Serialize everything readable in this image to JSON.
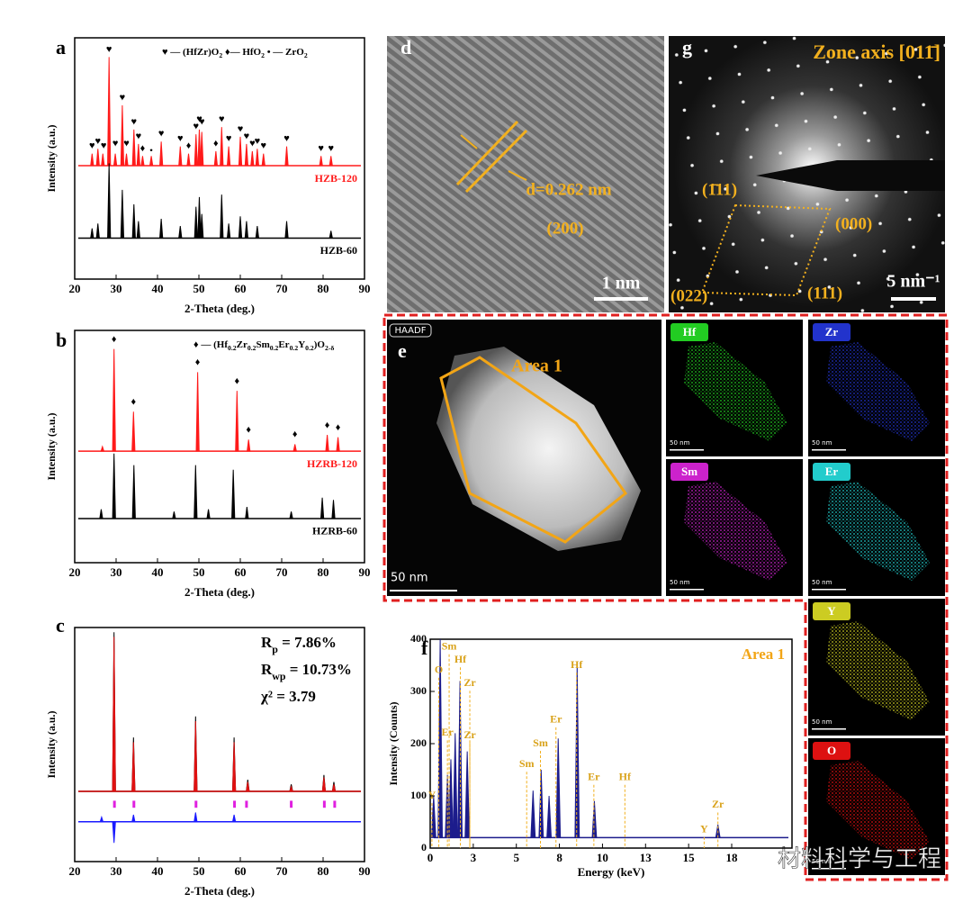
{
  "chart_data": [
    {
      "type": "peaks",
      "title": "a",
      "xlabel": "2-Theta (deg.)",
      "ylabel": "Intensity (a.u.)",
      "xlim": [
        20,
        90
      ],
      "xticks": [
        20,
        30,
        40,
        50,
        60,
        70,
        80,
        90
      ],
      "ylim": [
        0,
        100
      ],
      "legend": [
        {
          "text": "♥ — (HfZr)O"
        },
        {
          "text": "2",
          "sub": true
        },
        {
          "text": " ♦— HfO"
        },
        {
          "text": "2",
          "sub": true
        },
        {
          "text": " • — ZrO"
        },
        {
          "text": "2",
          "sub": true
        }
      ],
      "series": [
        {
          "name": "HZB-120",
          "color": "#ff1a1a",
          "baseline": 47,
          "x": [
            24.2,
            25.6,
            26.8,
            28.3,
            29.8,
            31.5,
            32.5,
            34.3,
            35.4,
            36.4,
            38.5,
            40.9,
            45.5,
            47.5,
            49.3,
            50.1,
            50.7,
            54.1,
            55.5,
            57.2,
            60.0,
            61.5,
            62.9,
            64.1,
            65.6,
            71.2,
            79.5,
            81.9
          ],
          "values": [
            52,
            54,
            52,
            92,
            52,
            72,
            52,
            62,
            56,
            51,
            51,
            57,
            55,
            52,
            60,
            62,
            61,
            53,
            63,
            55,
            59,
            56,
            53,
            54,
            52,
            55,
            51,
            51
          ]
        },
        {
          "name": "HZB-60",
          "color": "#000000",
          "baseline": 17,
          "x": [
            24.2,
            25.6,
            28.3,
            31.5,
            34.3,
            35.4,
            40.9,
            45.5,
            49.3,
            50.1,
            50.7,
            55.5,
            57.2,
            60.0,
            61.5,
            64.1,
            71.2,
            81.9
          ],
          "values": [
            21,
            23,
            48,
            37,
            31,
            24,
            25,
            22,
            30,
            34,
            27,
            35,
            23,
            26,
            24,
            22,
            24,
            20
          ]
        }
      ],
      "markers": [
        {
          "symbol": "♥",
          "x": 24.2,
          "y": 55
        },
        {
          "symbol": "♥",
          "x": 25.6,
          "y": 57
        },
        {
          "symbol": "♥",
          "x": 27.0,
          "y": 55
        },
        {
          "symbol": "♥",
          "x": 28.3,
          "y": 95
        },
        {
          "symbol": "♥",
          "x": 29.8,
          "y": 56
        },
        {
          "symbol": "♥",
          "x": 31.5,
          "y": 75
        },
        {
          "symbol": "♥",
          "x": 32.5,
          "y": 56
        },
        {
          "symbol": "♥",
          "x": 34.3,
          "y": 65
        },
        {
          "symbol": "♥",
          "x": 35.4,
          "y": 59
        },
        {
          "symbol": "♦",
          "x": 36.4,
          "y": 54
        },
        {
          "symbol": "•",
          "x": 38.5,
          "y": 53
        },
        {
          "symbol": "♥",
          "x": 40.9,
          "y": 60
        },
        {
          "symbol": "♥",
          "x": 45.5,
          "y": 58
        },
        {
          "symbol": "♦",
          "x": 47.5,
          "y": 55
        },
        {
          "symbol": "♥",
          "x": 49.3,
          "y": 63
        },
        {
          "symbol": "♥",
          "x": 50.1,
          "y": 66
        },
        {
          "symbol": "♥",
          "x": 50.7,
          "y": 65
        },
        {
          "symbol": "♦",
          "x": 54.1,
          "y": 56
        },
        {
          "symbol": "♥",
          "x": 55.5,
          "y": 66
        },
        {
          "symbol": "♥",
          "x": 57.2,
          "y": 58
        },
        {
          "symbol": "♥",
          "x": 60.0,
          "y": 62
        },
        {
          "symbol": "♥",
          "x": 61.5,
          "y": 59
        },
        {
          "symbol": "♥",
          "x": 62.9,
          "y": 56
        },
        {
          "symbol": "♥",
          "x": 64.1,
          "y": 57
        },
        {
          "symbol": "♥",
          "x": 65.6,
          "y": 55
        },
        {
          "symbol": "♥",
          "x": 71.2,
          "y": 58
        },
        {
          "symbol": "♥",
          "x": 79.5,
          "y": 54
        },
        {
          "symbol": "♥",
          "x": 81.9,
          "y": 54
        }
      ]
    },
    {
      "type": "peaks",
      "title": "b",
      "xlabel": "2-Theta (deg.)",
      "ylabel": "Intensity (a.u.)",
      "xlim": [
        20,
        90
      ],
      "xticks": [
        20,
        30,
        40,
        50,
        60,
        70,
        80,
        90
      ],
      "ylim": [
        0,
        100
      ],
      "legend": [
        {
          "text": "♦ — (Hf"
        },
        {
          "text": "0.2",
          "sub": true
        },
        {
          "text": "Zr"
        },
        {
          "text": "0.2",
          "sub": true
        },
        {
          "text": "Sm"
        },
        {
          "text": "0.2",
          "sub": true
        },
        {
          "text": "Er"
        },
        {
          "text": "0.2",
          "sub": true
        },
        {
          "text": "Y"
        },
        {
          "text": "0.2",
          "sub": true
        },
        {
          "text": ")O"
        },
        {
          "text": "2-δ",
          "sub": true
        }
      ],
      "series": [
        {
          "name": "HZRB-120",
          "color": "#ff1a1a",
          "baseline": 48,
          "x": [
            26.7,
            29.5,
            34.2,
            49.7,
            59.2,
            62.0,
            73.2,
            81.0,
            83.6
          ],
          "values": [
            50,
            92,
            65,
            82,
            74,
            53,
            51,
            55,
            54
          ]
        },
        {
          "name": "HZRB-60",
          "color": "#000000",
          "baseline": 19,
          "x": [
            26.4,
            29.5,
            34.3,
            44.0,
            49.2,
            52.3,
            58.3,
            61.6,
            72.3,
            79.8,
            82.5
          ],
          "values": [
            23,
            47,
            42,
            22,
            42,
            23,
            40,
            24,
            22,
            28,
            27
          ]
        }
      ],
      "markers": [
        {
          "symbol": "♦",
          "x": 29.5,
          "y": 96
        },
        {
          "symbol": "♦",
          "x": 34.2,
          "y": 69
        },
        {
          "symbol": "♦",
          "x": 49.7,
          "y": 86
        },
        {
          "symbol": "♦",
          "x": 59.2,
          "y": 78
        },
        {
          "symbol": "♦",
          "x": 62.0,
          "y": 57
        },
        {
          "symbol": "♦",
          "x": 73.2,
          "y": 55
        },
        {
          "symbol": "♦",
          "x": 81.0,
          "y": 59
        },
        {
          "symbol": "♦",
          "x": 83.6,
          "y": 58
        }
      ]
    },
    {
      "type": "peaks",
      "title": "c",
      "xlabel": "2-Theta (deg.)",
      "ylabel": "Intensity (a.u.)",
      "xlim": [
        20,
        90
      ],
      "xticks": [
        20,
        30,
        40,
        50,
        60,
        70,
        80,
        90
      ],
      "ylim": [
        0,
        100
      ],
      "stats": [
        [
          {
            "text": "R"
          },
          {
            "text": "p",
            "sub": true
          },
          {
            "text": " = 7.86%"
          }
        ],
        [
          {
            "text": "R"
          },
          {
            "text": "wp",
            "sub": true
          },
          {
            "text": " = 10.73%"
          }
        ],
        [
          {
            "text": "χ² = 3.79"
          }
        ]
      ],
      "series": [
        {
          "color": "#000000",
          "baseline": 30,
          "x": [
            29.5,
            34.2,
            49.2,
            58.5,
            61.8,
            72.3,
            80.2,
            82.6
          ],
          "values": [
            98,
            53,
            62,
            53,
            35,
            33,
            37,
            34
          ]
        },
        {
          "color": "#e01010",
          "baseline": 30,
          "x": [
            29.5,
            34.2,
            49.2,
            58.5,
            61.8,
            72.3,
            80.2,
            82.6
          ],
          "values": [
            96,
            51,
            60,
            51,
            34,
            32,
            36,
            33
          ]
        },
        {
          "color": "#1a1aff",
          "baseline": 17,
          "x": [
            26.5,
            29.5,
            34.2,
            49.2,
            58.5
          ],
          "values": [
            19,
            8,
            20,
            21,
            20
          ]
        }
      ],
      "bragg": {
        "color": "#e020e0",
        "x": [
          29.6,
          34.3,
          49.3,
          58.6,
          61.5,
          72.3,
          80.3,
          82.8
        ],
        "ylim": [
          23,
          26
        ]
      }
    },
    {
      "type": "peaks",
      "title": "f",
      "xlabel": "Energy (keV)",
      "ylabel": "Intensity (Counts)",
      "annotation": "Area 1",
      "xlim": [
        0,
        21
      ],
      "xticks": [
        0,
        {
          "value": 2.5,
          "label": "3"
        },
        5,
        {
          "value": 7.5,
          "label": "8"
        },
        10,
        {
          "value": 12.5,
          "label": "13"
        },
        15,
        {
          "value": 17.5,
          "label": "18"
        }
      ],
      "ylim": [
        0,
        400
      ],
      "yticks": [
        0,
        100,
        200,
        300,
        400
      ],
      "series": [
        {
          "color": "#1c1c8c",
          "baseline": 20,
          "x": [
            0.2,
            0.58,
            1.0,
            1.2,
            1.45,
            1.73,
            2.15,
            5.97,
            6.44,
            6.9,
            7.43,
            8.53,
            9.53,
            16.7
          ],
          "values": [
            100,
            400,
            140,
            170,
            220,
            320,
            185,
            110,
            150,
            100,
            210,
            350,
            90,
            45
          ]
        }
      ],
      "labels": [
        {
          "label": "Y",
          "x": 0.1,
          "y": 100
        },
        {
          "label": "O",
          "x": 0.5,
          "y": 340
        },
        {
          "label": "Sm",
          "x": 1.1,
          "y": 385
        },
        {
          "label": "Hf",
          "x": 1.75,
          "y": 360
        },
        {
          "label": "Zr",
          "x": 2.3,
          "y": 315
        },
        {
          "label": "Er",
          "x": 1.0,
          "y": 220
        },
        {
          "label": "Zr",
          "x": 2.3,
          "y": 215
        },
        {
          "label": "Sm",
          "x": 5.6,
          "y": 160
        },
        {
          "label": "Sm",
          "x": 6.4,
          "y": 200
        },
        {
          "label": "Er",
          "x": 7.3,
          "y": 245
        },
        {
          "label": "Hf",
          "x": 8.5,
          "y": 350
        },
        {
          "label": "Er",
          "x": 9.5,
          "y": 135
        },
        {
          "label": "Hf",
          "x": 11.3,
          "y": 135
        },
        {
          "label": "Y",
          "x": 15.9,
          "y": 35
        },
        {
          "label": "Zr",
          "x": 16.7,
          "y": 82
        }
      ]
    }
  ],
  "panels": {
    "d": {
      "letter": "d",
      "spacing": "d=0.262 nm",
      "plane": "(200)",
      "scale": "1 nm"
    },
    "g": {
      "letter": "g",
      "zone": "Zone axis [011̄]",
      "spots": [
        "(1̄11)",
        "(000)",
        "(022)",
        "(111)"
      ],
      "scale": "5 nm⁻¹"
    },
    "e": {
      "letter": "e",
      "mode": "HAADF",
      "area": "Area 1",
      "scale": "50 nm",
      "maps": [
        {
          "label": "Hf",
          "color": "#22cc22"
        },
        {
          "label": "Zr",
          "color": "#2233cc"
        },
        {
          "label": "Sm",
          "color": "#cc22cc"
        },
        {
          "label": "Er",
          "color": "#22cccc"
        },
        {
          "label": "Y",
          "color": "#cccc22"
        },
        {
          "label": "O",
          "color": "#dd1111"
        }
      ],
      "map_scale": "50 nm"
    },
    "watermark": "材料科学与工程"
  }
}
